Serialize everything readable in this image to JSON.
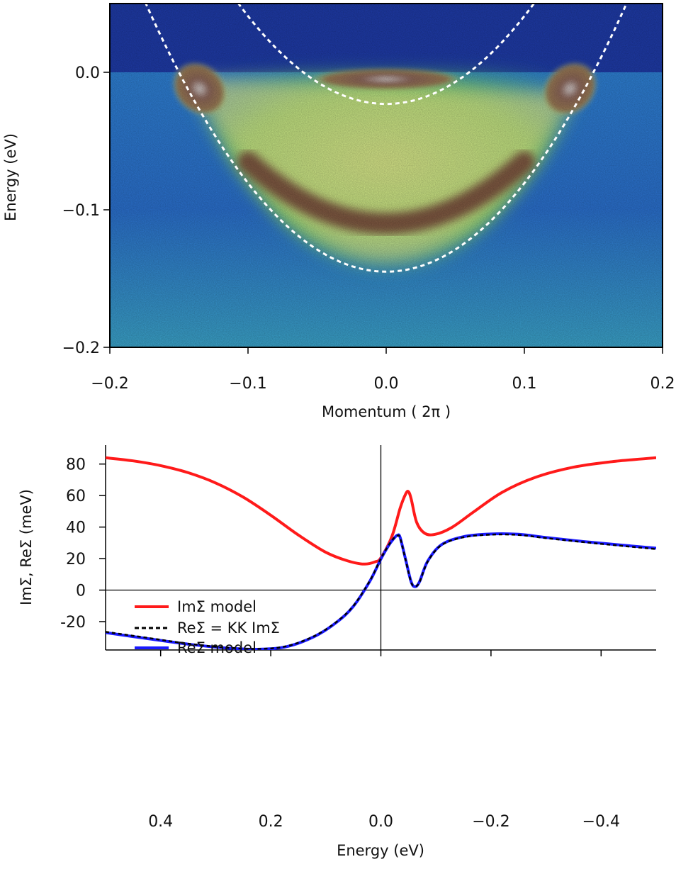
{
  "chart_data": [
    {
      "type": "heatmap",
      "title": "",
      "xlabel": "Momentum ( 2π )",
      "ylabel": "Energy (eV)",
      "xlim": [
        -0.2,
        0.2
      ],
      "ylim": [
        -0.2,
        0.05
      ],
      "xticks": [
        -0.2,
        -0.1,
        0.0,
        0.1,
        0.2
      ],
      "xtick_labels": [
        "−0.2",
        "−0.1",
        "0.0",
        "0.1",
        "0.2"
      ],
      "yticks": [
        0.0,
        -0.1,
        -0.2
      ],
      "ytick_labels": [
        "0.0",
        "−0.1",
        "−0.2"
      ],
      "fermi_level": 0.0,
      "colormap": [
        "#1d3aa8",
        "#2f7fd6",
        "#3fc1a2",
        "#7fd65a",
        "#e6e98a",
        "#7a4a3a"
      ],
      "series": [
        {
          "name": "outer band (dashed)",
          "style": "dashed",
          "color": "#ffffff",
          "kind": "parabola",
          "k0": 0.0,
          "e_min": -0.145,
          "k_f": 0.15
        },
        {
          "name": "inner band (dashed)",
          "style": "dashed",
          "color": "#ffffff",
          "kind": "parabola",
          "k0": 0.0,
          "e_min": -0.023,
          "k_f": 0.06
        }
      ],
      "intensity_features": [
        {
          "name": "inner band pocket",
          "k": 0.0,
          "e": -0.005,
          "dk": 0.055,
          "de": 0.008,
          "strength": 1.0
        },
        {
          "name": "left hot spot",
          "k": -0.135,
          "e": -0.012,
          "dk": 0.018,
          "de": 0.022,
          "strength": 1.0
        },
        {
          "name": "right hot spot",
          "k": 0.133,
          "e": -0.012,
          "dk": 0.018,
          "de": 0.022,
          "strength": 1.0
        }
      ],
      "replica_band": {
        "name": "lower replica band",
        "k0": 0.0,
        "e_min": -0.11,
        "k_edge": 0.1,
        "e_edge": -0.065,
        "strength": 0.85
      }
    },
    {
      "type": "line",
      "title": "",
      "xlabel": "Energy (eV)",
      "ylabel": "ImΣ,  ReΣ (meV)",
      "xlim": [
        0.5,
        -0.5
      ],
      "ylim": [
        -38,
        92
      ],
      "xticks": [
        0.4,
        0.2,
        0.0,
        -0.2,
        -0.4
      ],
      "xtick_labels": [
        "0.4",
        "0.2",
        "0.0",
        "−0.2",
        "−0.4"
      ],
      "yticks": [
        80,
        60,
        40,
        20,
        0,
        -20
      ],
      "ytick_labels": [
        "80",
        "60",
        "40",
        "20",
        "0",
        "-20"
      ],
      "reference_lines": {
        "x": 0.0,
        "y": 0
      },
      "legend_position": "center-left",
      "series": [
        {
          "name": "ImΣ model",
          "color": "#ff1a1a",
          "style": "solid",
          "x": [
            0.5,
            0.45,
            0.4,
            0.35,
            0.3,
            0.25,
            0.2,
            0.15,
            0.1,
            0.06,
            0.03,
            0.01,
            0.0,
            -0.02,
            -0.035,
            -0.045,
            -0.05,
            -0.055,
            -0.065,
            -0.08,
            -0.1,
            -0.13,
            -0.17,
            -0.22,
            -0.28,
            -0.35,
            -0.42,
            -0.5
          ],
          "y": [
            84,
            82,
            79,
            74.5,
            68,
            59,
            47.5,
            35,
            24,
            18.5,
            16.5,
            18,
            20.5,
            34,
            52,
            61,
            62.5,
            58,
            43,
            36,
            35.5,
            40,
            50,
            62,
            71.5,
            78,
            81.5,
            84
          ]
        },
        {
          "name": "ReΣ = KK ImΣ",
          "color": "#000000",
          "style": "dashed",
          "x": [
            0.5,
            0.42,
            0.35,
            0.28,
            0.22,
            0.17,
            0.12,
            0.08,
            0.05,
            0.02,
            0.0,
            -0.015,
            -0.025,
            -0.03,
            -0.035,
            -0.045,
            -0.055,
            -0.062,
            -0.07,
            -0.085,
            -0.11,
            -0.15,
            -0.2,
            -0.25,
            -0.3,
            -0.38,
            -0.5
          ],
          "y": [
            -26.5,
            -30.5,
            -34,
            -36.5,
            -37.3,
            -35.5,
            -29,
            -20,
            -10,
            6,
            20,
            29,
            33.5,
            34.5,
            33,
            19,
            5,
            2.5,
            5,
            18,
            28.5,
            33.5,
            35.2,
            35,
            33,
            30,
            26
          ]
        },
        {
          "name": "ReΣ model",
          "color": "#1a1aff",
          "style": "solid",
          "x": [
            0.5,
            0.42,
            0.35,
            0.28,
            0.22,
            0.17,
            0.12,
            0.08,
            0.05,
            0.02,
            0.0,
            -0.015,
            -0.025,
            -0.03,
            -0.035,
            -0.045,
            -0.055,
            -0.062,
            -0.07,
            -0.085,
            -0.11,
            -0.15,
            -0.2,
            -0.25,
            -0.3,
            -0.38,
            -0.5
          ],
          "y": [
            -27,
            -31,
            -34.3,
            -36.8,
            -37.5,
            -35.8,
            -29.3,
            -20.3,
            -10.3,
            5.7,
            19.7,
            28.8,
            33.3,
            34.8,
            33.4,
            19.3,
            5.3,
            2.2,
            5.2,
            18.3,
            28.8,
            33.9,
            35.6,
            35.4,
            33.4,
            30.4,
            26.6
          ]
        }
      ]
    }
  ]
}
